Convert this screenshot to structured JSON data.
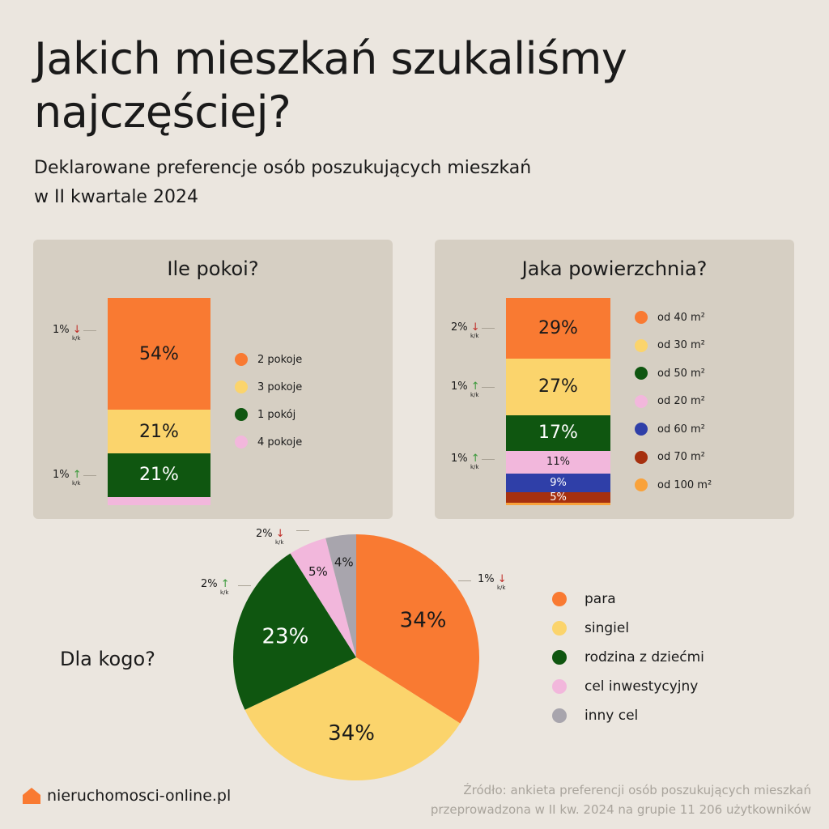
{
  "title": [
    "Jakich mieszkań szukaliśmy",
    "najczęściej?"
  ],
  "subtitle": [
    "Deklarowane preferencje osób poszukujących mieszkań",
    "w II kwartale 2024"
  ],
  "chart_data": [
    {
      "type": "bar",
      "stacked": true,
      "title": "Ile pokoi?",
      "categories": [
        "2 pokoje",
        "3 pokoje",
        "1 pokój",
        "4 pokoje"
      ],
      "values": [
        54,
        21,
        21,
        4
      ],
      "labels": [
        "54%",
        "21%",
        "21%",
        ""
      ],
      "colors": [
        "#f97a32",
        "#fbd46c",
        "#0f5610",
        "#f2b7dc"
      ],
      "changes": [
        {
          "label": "1%",
          "dir": "down",
          "note": "k/k",
          "segment": 0
        },
        {
          "label": "1%",
          "dir": "up",
          "note": "k/k",
          "segment": 2
        }
      ]
    },
    {
      "type": "bar",
      "stacked": true,
      "title": "Jaka powierzchnia?",
      "categories": [
        "od 40 m²",
        "od 30 m²",
        "od 50 m²",
        "od 20 m²",
        "od 60 m²",
        "od 70 m²",
        "od 100 m²"
      ],
      "values": [
        29,
        27,
        17,
        11,
        9,
        5,
        1
      ],
      "labels": [
        "29%",
        "27%",
        "17%",
        "11%",
        "9%",
        "5%",
        ""
      ],
      "colors": [
        "#f97a32",
        "#fbd46c",
        "#0f5610",
        "#f2b7dc",
        "#2f3fa8",
        "#a6300f",
        "#f9a23a"
      ],
      "changes": [
        {
          "label": "2%",
          "dir": "down",
          "note": "k/k",
          "segment": 0
        },
        {
          "label": "1%",
          "dir": "up",
          "note": "k/k",
          "segment": 1
        },
        {
          "label": "1%",
          "dir": "up",
          "note": "k/k",
          "segment": 3
        }
      ]
    },
    {
      "type": "pie",
      "title": "Dla kogo?",
      "categories": [
        "para",
        "singiel",
        "rodzina z dziećmi",
        "cel inwestycyjny",
        "inny cel"
      ],
      "values": [
        34,
        34,
        23,
        5,
        4
      ],
      "labels": [
        "34%",
        "34%",
        "23%",
        "5%",
        "4%"
      ],
      "colors": [
        "#f97a32",
        "#fbd46c",
        "#0f5610",
        "#f2b7dc",
        "#a8a5ad"
      ],
      "changes": [
        {
          "label": "1%",
          "dir": "down",
          "note": "k/k",
          "segment": 0
        },
        {
          "label": "2%",
          "dir": "up",
          "note": "k/k",
          "segment": 2
        },
        {
          "label": "2%",
          "dir": "down",
          "note": "k/k",
          "segment": 3
        }
      ]
    }
  ],
  "footer": {
    "brand": "nieruchomosci-online.pl",
    "source": [
      "Źródło: ankieta preferencji osób poszukujących mieszkań",
      "przeprowadzona w II kw. 2024 na grupie 11 206 użytkowników"
    ]
  }
}
